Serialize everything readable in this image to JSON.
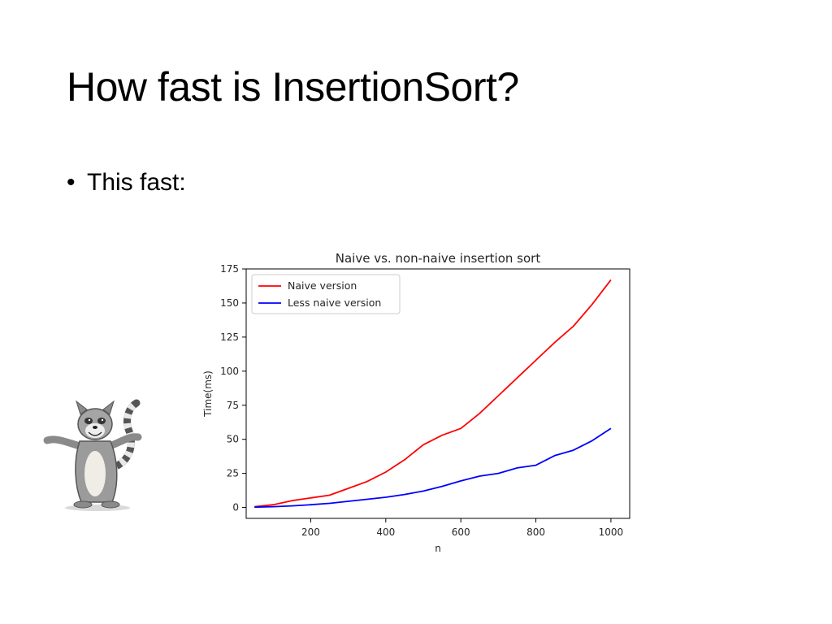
{
  "slide": {
    "title": "How fast is InsertionSort?",
    "bullet_marker": "•",
    "bullet_text": "This fast:"
  },
  "mascot": {
    "icon": "cartoon-lemur-icon"
  },
  "chart_data": {
    "type": "line",
    "title": "Naive vs. non-naive insertion sort",
    "xlabel": "n",
    "ylabel": "Time(ms)",
    "xlim": [
      28,
      1050
    ],
    "ylim": [
      -8,
      175
    ],
    "xticks": [
      200,
      400,
      600,
      800,
      1000
    ],
    "yticks": [
      0,
      25,
      50,
      75,
      100,
      125,
      150,
      175
    ],
    "grid": false,
    "legend_position": "upper-left",
    "series": [
      {
        "name": "Naive version",
        "color": "#ff0000",
        "x": [
          50,
          100,
          150,
          200,
          250,
          300,
          350,
          400,
          450,
          500,
          550,
          600,
          650,
          700,
          750,
          800,
          850,
          900,
          950,
          1000
        ],
        "y": [
          0.5,
          2,
          5,
          7,
          9,
          14,
          19,
          26,
          35,
          46,
          53,
          58,
          69,
          82,
          95,
          108,
          121,
          133,
          149,
          167
        ]
      },
      {
        "name": "Less naive version",
        "color": "#0000ff",
        "x": [
          50,
          100,
          150,
          200,
          250,
          300,
          350,
          400,
          450,
          500,
          550,
          600,
          650,
          700,
          750,
          800,
          850,
          900,
          950,
          1000
        ],
        "y": [
          0.2,
          0.6,
          1.2,
          2,
          3,
          4.5,
          6,
          7.5,
          9.5,
          12,
          15.5,
          19.5,
          23,
          25,
          29,
          31,
          38,
          42,
          49,
          58
        ]
      }
    ]
  }
}
